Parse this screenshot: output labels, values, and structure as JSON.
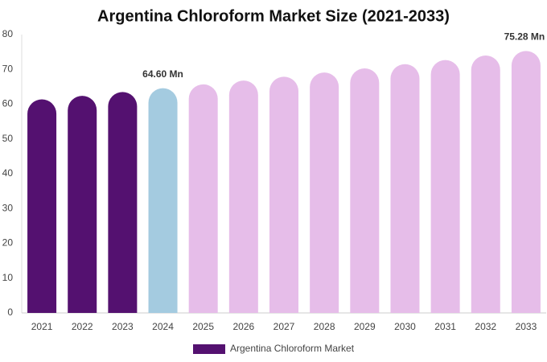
{
  "chart_data": {
    "type": "bar",
    "title": "Argentina Chloroform Market Size (2021-2033)",
    "categories": [
      "2021",
      "2022",
      "2023",
      "2024",
      "2025",
      "2026",
      "2027",
      "2028",
      "2029",
      "2030",
      "2031",
      "2032",
      "2033"
    ],
    "series": [
      {
        "name": "Argentina Chloroform Market",
        "color": "#541170",
        "values": [
          61.4,
          62.4,
          63.5,
          64.6,
          65.7,
          66.8,
          67.9,
          69.1,
          70.3,
          71.5,
          72.7,
          74.0,
          75.28
        ],
        "colors": [
          "#541170",
          "#541170",
          "#541170",
          "#a4cbe0",
          "#e6bde9",
          "#e6bde9",
          "#e6bde9",
          "#e6bde9",
          "#e6bde9",
          "#e6bde9",
          "#e6bde9",
          "#e6bde9",
          "#e6bde9"
        ],
        "value_labels": [
          null,
          null,
          null,
          "64.60 Mn",
          null,
          null,
          null,
          null,
          null,
          null,
          null,
          null,
          "75.28 Mn"
        ]
      }
    ],
    "ylim": [
      0,
      80
    ],
    "yticks": [
      0,
      10,
      20,
      30,
      40,
      50,
      60,
      70,
      80
    ],
    "grid": false
  }
}
